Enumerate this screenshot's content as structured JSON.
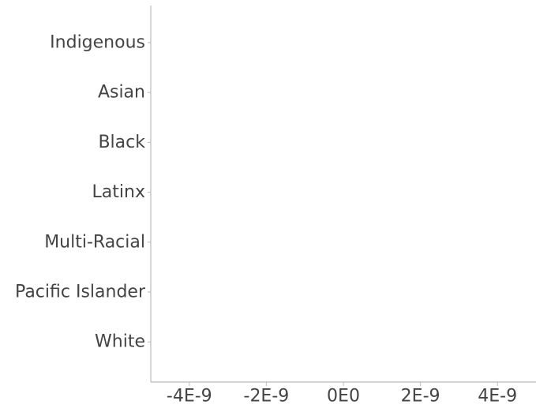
{
  "chart_data": {
    "type": "bar",
    "orientation": "horizontal",
    "title": "",
    "xlabel": "",
    "ylabel": "",
    "categories": [
      "Indigenous",
      "Asian",
      "Black",
      "Latinx",
      "Multi-Racial",
      "Pacific Islander",
      "White"
    ],
    "values": [
      0,
      0,
      0,
      0,
      0,
      0,
      0
    ],
    "xlim": [
      -5e-09,
      5e-09
    ],
    "x_ticks": [
      -4e-09,
      -2e-09,
      0,
      2e-09,
      4e-09
    ],
    "x_tick_labels": [
      "-4E-9",
      "-2E-9",
      "0E0",
      "2E-9",
      "4E-9"
    ],
    "grid": false,
    "legend": "none",
    "colors": {
      "axis": "#bbbbbb",
      "text": "#444444",
      "bar": "#4e79a7"
    }
  }
}
